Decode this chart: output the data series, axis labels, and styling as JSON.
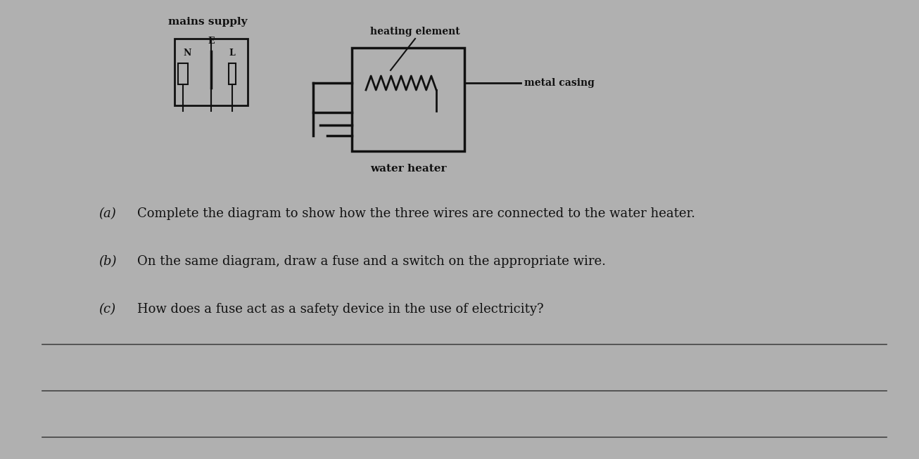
{
  "bg_color": "#b0b0b0",
  "text_color": "#111111",
  "title_mains": "mains supply",
  "title_heating": "heating element",
  "label_metal": "metal casing",
  "label_water": "water heater",
  "qa_text": [
    {
      "label": "(a)",
      "text": "Complete the diagram to show how the three wires are connected to the water heater."
    },
    {
      "label": "(b)",
      "text": "On the same diagram, draw a fuse and a switch on the appropriate wire."
    },
    {
      "label": "(c)",
      "text": "How does a fuse act as a safety device in the use of electricity?"
    }
  ],
  "line_color": "#111111",
  "answer_line_color": "#444444"
}
